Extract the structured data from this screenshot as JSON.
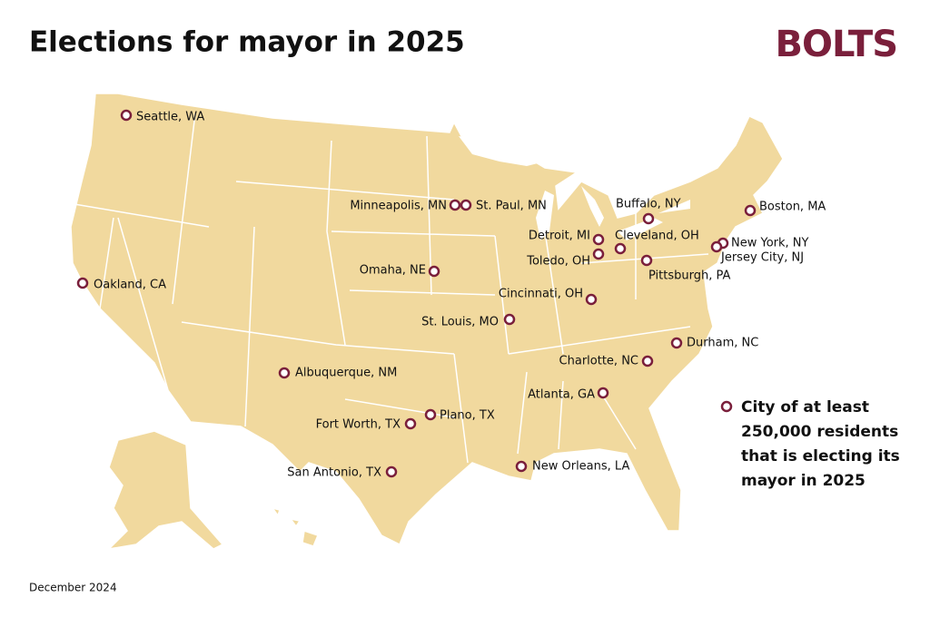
{
  "header": {
    "title": "Elections for mayor in 2025",
    "logo": "BOLTS"
  },
  "cities": [
    "Seattle, WA",
    "Minneapolis, MN",
    "St. Paul, MN",
    "Buffalo, NY",
    "Boston, MA",
    "Detroit, MI",
    "Cleveland, OH",
    "Toledo, OH",
    "New York, NY",
    "Jersey City, NJ",
    "Pittsburgh, PA",
    "Oakland, CA",
    "Omaha, NE",
    "Cincinnati, OH",
    "St. Louis, MO",
    "Durham, NC",
    "Charlotte, NC",
    "Albuquerque, NM",
    "Atlanta, GA",
    "Plano, TX",
    "Fort Worth, TX",
    "San Antonio, TX",
    "New Orleans, LA"
  ],
  "legend": {
    "lines": [
      "City of at least",
      "250,000 residents",
      "that is electing its",
      "mayor in 2025"
    ]
  },
  "footer": {
    "date": "December 2024"
  }
}
